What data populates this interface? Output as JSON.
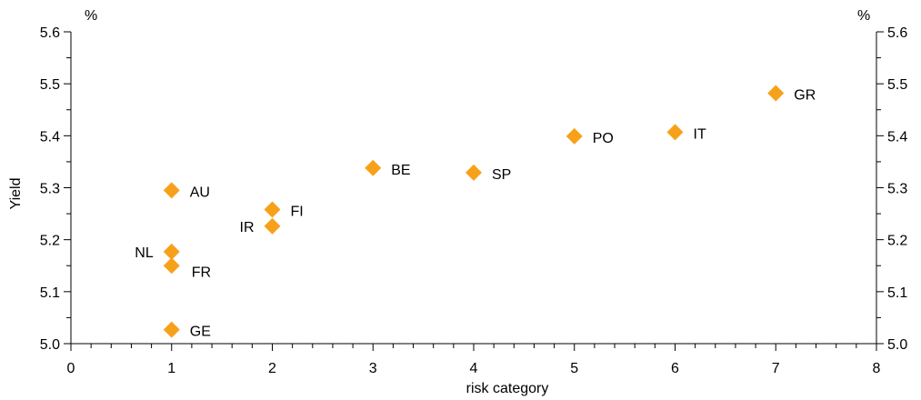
{
  "chart_data": {
    "type": "scatter",
    "xlabel": "risk category",
    "ylabel": "Yield",
    "y_unit_left": "%",
    "y_unit_right": "%",
    "xlim": [
      0,
      8
    ],
    "ylim": [
      5.0,
      5.6
    ],
    "x_ticks": [
      "0",
      "1",
      "2",
      "3",
      "4",
      "5",
      "6",
      "7",
      "8"
    ],
    "y_ticks": [
      "5.0",
      "5.1",
      "5.2",
      "5.3",
      "5.4",
      "5.5",
      "5.6"
    ],
    "grid": false,
    "legend": "none",
    "marker": "diamond",
    "marker_color": "#F7A11A",
    "points": [
      {
        "label": "AU",
        "x": 1,
        "y": 5.295,
        "label_side": "right"
      },
      {
        "label": "NL",
        "x": 1,
        "y": 5.177,
        "label_side": "left"
      },
      {
        "label": "FR",
        "x": 1,
        "y": 5.15,
        "label_side": "right-below"
      },
      {
        "label": "GE",
        "x": 1,
        "y": 5.027,
        "label_side": "right"
      },
      {
        "label": "FI",
        "x": 2,
        "y": 5.258,
        "label_side": "right"
      },
      {
        "label": "IR",
        "x": 2,
        "y": 5.226,
        "label_side": "left"
      },
      {
        "label": "BE",
        "x": 3,
        "y": 5.338,
        "label_side": "right"
      },
      {
        "label": "SP",
        "x": 4,
        "y": 5.329,
        "label_side": "right"
      },
      {
        "label": "PO",
        "x": 5,
        "y": 5.399,
        "label_side": "right"
      },
      {
        "label": "IT",
        "x": 6,
        "y": 5.407,
        "label_side": "right"
      },
      {
        "label": "GR",
        "x": 7,
        "y": 5.482,
        "label_side": "right"
      }
    ]
  }
}
